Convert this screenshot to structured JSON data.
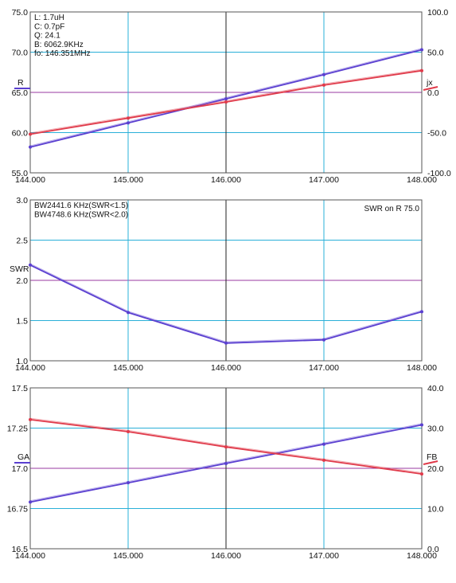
{
  "chart_data": [
    {
      "type": "line",
      "x_ticks": [
        "144.000",
        "145.000",
        "146.000",
        "147.000",
        "148.000"
      ],
      "xlim": [
        144,
        148
      ],
      "ylim": [
        55,
        75
      ],
      "y2lim": [
        -100,
        100
      ],
      "y_ticks": [
        "55.0",
        "60.0",
        "65.0",
        "70.0",
        "75.0"
      ],
      "y2_ticks": [
        "-100.0",
        "-50.0",
        "0.0",
        "50.0",
        "100.0"
      ],
      "ylabel": "R",
      "y2label": "jx",
      "info_lines": [
        "L: 1.7uH",
        "C: 0.7pF",
        "Q: 24.1",
        "B: 6062.9KHz",
        "fo: 146.351MHz"
      ],
      "series": [
        {
          "axis": "left",
          "color": "#5a3fd0",
          "x": [
            144,
            145,
            146,
            147,
            148
          ],
          "values": [
            58.2,
            61.2,
            64.2,
            67.2,
            70.3
          ]
        },
        {
          "axis": "right",
          "color": "#e03a4a",
          "x": [
            144,
            145,
            146,
            147,
            148
          ],
          "values": [
            -52,
            -32,
            -12,
            9,
            27
          ]
        }
      ]
    },
    {
      "type": "line",
      "x_ticks": [
        "144.000",
        "145.000",
        "146.000",
        "147.000",
        "148.000"
      ],
      "xlim": [
        144,
        148
      ],
      "ylim": [
        1.0,
        3.0
      ],
      "y_ticks": [
        "1.0",
        "1.5",
        "2.0",
        "2.5",
        "3.0"
      ],
      "ylabel": "SWR",
      "info_lines": [
        "BW2441.6 KHz(SWR<1.5)",
        "BW4748.6 KHz(SWR<2.0)"
      ],
      "note": "SWR on R 75.0",
      "series": [
        {
          "axis": "left",
          "color": "#5a3fd0",
          "x": [
            144,
            145,
            146,
            147,
            148
          ],
          "values": [
            2.19,
            1.6,
            1.22,
            1.26,
            1.61
          ]
        }
      ]
    },
    {
      "type": "line",
      "x_ticks": [
        "144.000",
        "145.000",
        "146.000",
        "147.000",
        "148.000"
      ],
      "xlim": [
        144,
        148
      ],
      "ylim": [
        16.5,
        17.5
      ],
      "y2lim": [
        0,
        40
      ],
      "y_ticks": [
        "16.5",
        "16.75",
        "17.0",
        "17.25",
        "17.5"
      ],
      "y2_ticks": [
        "0.0",
        "10.0",
        "20.0",
        "30.0",
        "40.0"
      ],
      "ylabel": "GA",
      "y2label": "FB",
      "series": [
        {
          "axis": "left",
          "color": "#5a3fd0",
          "x": [
            144,
            145,
            146,
            147,
            148
          ],
          "values": [
            16.79,
            16.91,
            17.03,
            17.15,
            17.27
          ]
        },
        {
          "axis": "right",
          "color": "#e03a4a",
          "x": [
            144,
            145,
            146,
            147,
            148
          ],
          "values": [
            32.1,
            29.1,
            25.3,
            22.0,
            18.6
          ]
        }
      ]
    }
  ]
}
